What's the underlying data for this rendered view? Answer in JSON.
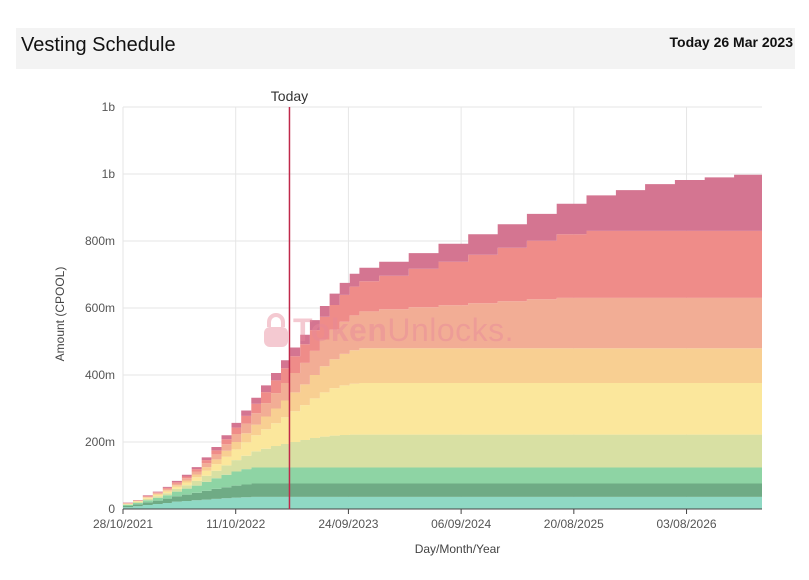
{
  "header": {
    "title": "Vesting Schedule",
    "today_label": "Today 26 Mar 2023"
  },
  "watermark": {
    "text_bold": "Token",
    "text_light": "Unlocks",
    "suffix": ".",
    "icon": "lock-icon"
  },
  "colors": {
    "today_line": "#c0284a",
    "grid": "#e6e6e6",
    "axis": "#444444"
  },
  "chart_data": {
    "type": "area",
    "stacked": true,
    "title": "",
    "xlabel": "Day/Month/Year",
    "ylabel": "Amount (CPOOL)",
    "today_label": "Today",
    "today_date": "26/03/2023",
    "x_start": "28/10/2021",
    "x_end": "24/03/2027",
    "x_ticks": [
      "28/10/2021",
      "11/10/2022",
      "24/09/2023",
      "06/09/2024",
      "20/08/2025",
      "03/08/2026"
    ],
    "ylim": [
      0,
      1200000000
    ],
    "y_ticks": [
      0,
      200000000,
      400000000,
      600000000,
      800000000,
      1000000000,
      1200000000
    ],
    "y_tick_labels": [
      "0",
      "200m",
      "400m",
      "600m",
      "800m",
      "1b",
      "1b"
    ],
    "grid": true,
    "step": true,
    "x": [
      "28/10/2021",
      "28/11/2021",
      "28/12/2021",
      "28/01/2022",
      "28/02/2022",
      "28/03/2022",
      "28/04/2022",
      "28/05/2022",
      "28/06/2022",
      "28/07/2022",
      "28/08/2022",
      "28/09/2022",
      "28/10/2022",
      "28/11/2022",
      "28/12/2022",
      "28/01/2023",
      "28/02/2023",
      "28/03/2023",
      "28/04/2023",
      "28/05/2023",
      "28/06/2023",
      "28/07/2023",
      "28/08/2023",
      "28/09/2023",
      "28/10/2023",
      "28/12/2023",
      "28/03/2024",
      "28/06/2024",
      "28/09/2024",
      "28/12/2024",
      "28/03/2025",
      "28/06/2025",
      "28/09/2025",
      "28/12/2025",
      "28/03/2026",
      "28/06/2026",
      "28/09/2026",
      "28/12/2026",
      "24/03/2027"
    ],
    "series": [
      {
        "color": "#8fd9c4",
        "values": [
          5,
          8,
          12,
          15,
          18,
          22,
          24,
          26,
          28,
          30,
          32,
          34,
          35,
          36,
          36,
          36,
          36,
          36,
          36,
          36,
          36,
          36,
          36,
          36,
          36,
          36,
          36,
          36,
          36,
          36,
          36,
          36,
          36,
          36,
          36,
          36,
          36,
          36,
          36
        ]
      },
      {
        "color": "#6fab85",
        "values": [
          4,
          6,
          8,
          10,
          13,
          16,
          19,
          22,
          26,
          30,
          33,
          36,
          38,
          40,
          40,
          40,
          40,
          40,
          40,
          40,
          40,
          40,
          40,
          40,
          40,
          40,
          40,
          40,
          40,
          40,
          40,
          40,
          40,
          40,
          40,
          40,
          40,
          40,
          40
        ]
      },
      {
        "color": "#8ed4a4",
        "values": [
          3,
          4,
          6,
          8,
          10,
          14,
          18,
          22,
          27,
          32,
          37,
          42,
          46,
          48,
          48,
          48,
          48,
          48,
          48,
          48,
          48,
          48,
          48,
          48,
          48,
          48,
          48,
          48,
          48,
          48,
          48,
          48,
          48,
          48,
          48,
          48,
          48,
          48,
          48
        ]
      },
      {
        "color": "#d8e0a3",
        "values": [
          2,
          3,
          4,
          5,
          6,
          8,
          10,
          14,
          18,
          22,
          28,
          34,
          40,
          48,
          56,
          64,
          70,
          76,
          82,
          88,
          92,
          95,
          97,
          98,
          98,
          98,
          98,
          98,
          98,
          98,
          98,
          98,
          98,
          98,
          98,
          98,
          98,
          98,
          98
        ]
      },
      {
        "color": "#fbe79c",
        "values": [
          1,
          2,
          3,
          4,
          5,
          6,
          8,
          11,
          15,
          20,
          26,
          32,
          40,
          48,
          58,
          68,
          80,
          92,
          104,
          118,
          132,
          142,
          148,
          152,
          154,
          154,
          154,
          154,
          154,
          154,
          154,
          154,
          154,
          154,
          154,
          154,
          154,
          154,
          154
        ]
      },
      {
        "color": "#f8cf92",
        "values": [
          1,
          1,
          2,
          3,
          4,
          5,
          6,
          8,
          11,
          14,
          18,
          22,
          27,
          32,
          38,
          44,
          50,
          56,
          62,
          70,
          78,
          86,
          94,
          100,
          104,
          104,
          104,
          104,
          104,
          104,
          104,
          104,
          104,
          104,
          104,
          104,
          104,
          104,
          104
        ]
      },
      {
        "color": "#f2ad95",
        "values": [
          1,
          1,
          2,
          3,
          4,
          5,
          7,
          9,
          12,
          15,
          19,
          24,
          29,
          34,
          40,
          46,
          52,
          58,
          64,
          72,
          80,
          88,
          96,
          104,
          110,
          116,
          122,
          128,
          134,
          140,
          146,
          150,
          150,
          150,
          150,
          150,
          150,
          150,
          150
        ]
      },
      {
        "color": "#ef8c89",
        "values": [
          1,
          1,
          2,
          2,
          3,
          4,
          5,
          7,
          9,
          12,
          15,
          19,
          23,
          28,
          33,
          38,
          44,
          50,
          56,
          62,
          68,
          74,
          80,
          86,
          90,
          100,
          115,
          130,
          145,
          160,
          175,
          190,
          200,
          200,
          200,
          200,
          200,
          200,
          200
        ]
      },
      {
        "color": "#d47591",
        "values": [
          1,
          1,
          2,
          2,
          3,
          4,
          5,
          6,
          8,
          10,
          12,
          14,
          16,
          18,
          20,
          22,
          24,
          26,
          28,
          30,
          32,
          34,
          36,
          38,
          40,
          42,
          47,
          54,
          61,
          70,
          80,
          91,
          106,
          122,
          140,
          152,
          160,
          168,
          170
        ]
      }
    ]
  }
}
